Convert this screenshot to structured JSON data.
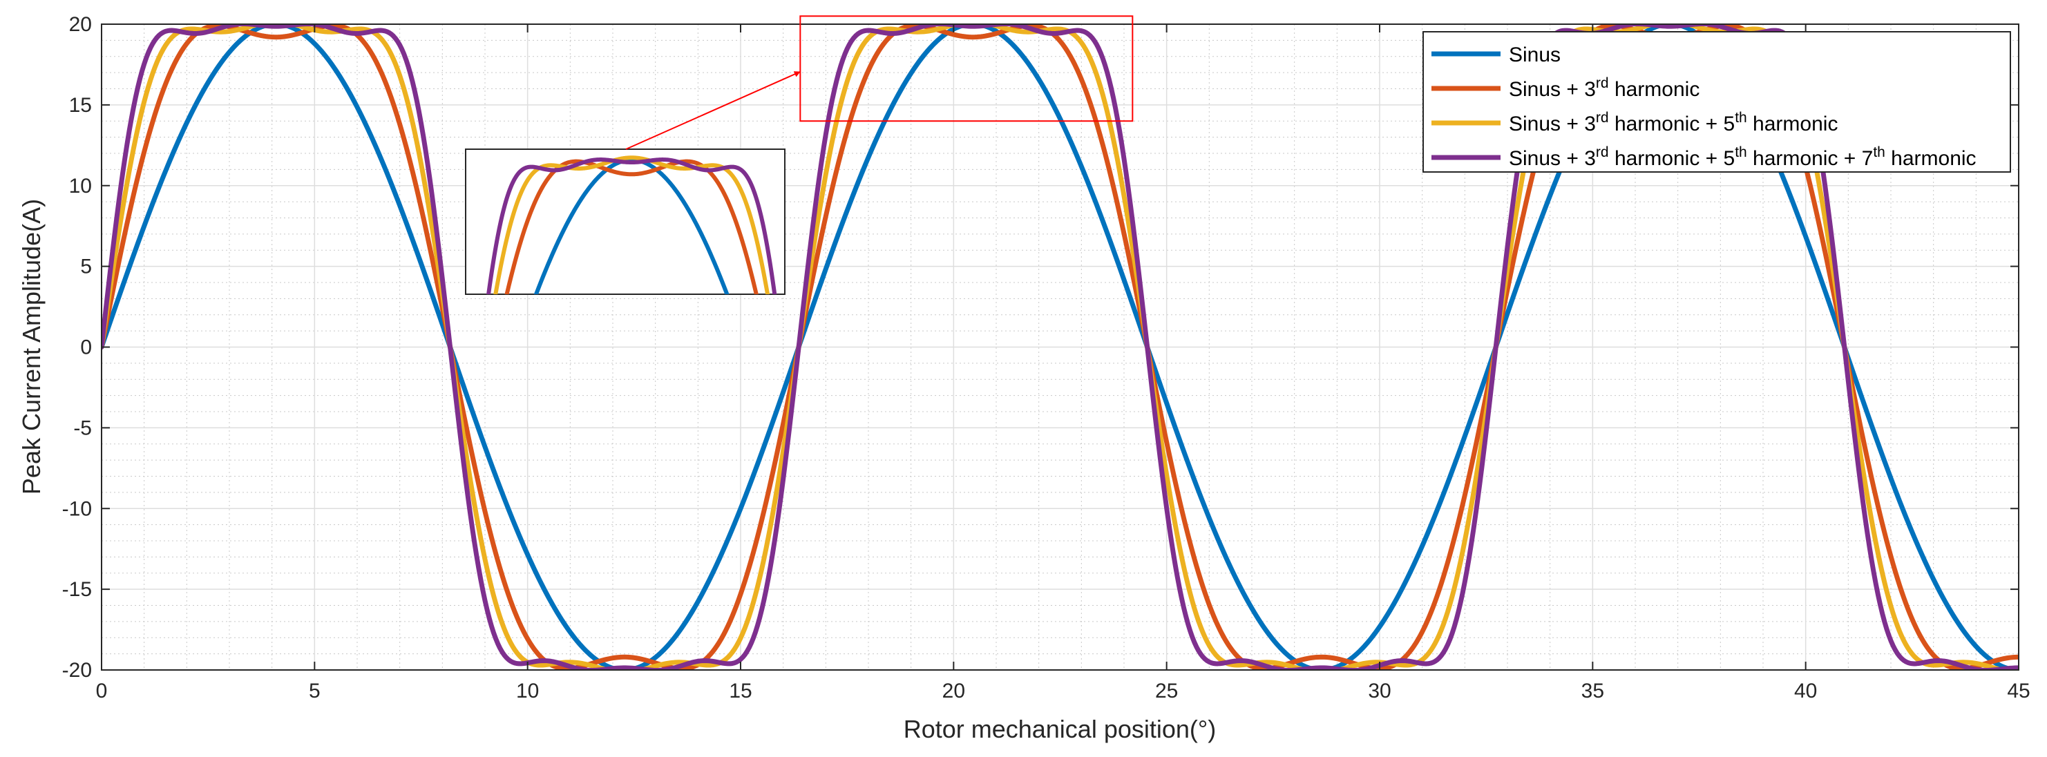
{
  "chart_data": {
    "type": "line",
    "title": "",
    "xlabel": "Rotor mechanical position(°)",
    "ylabel": "Peak Current Amplitude(A)",
    "xlim": [
      0,
      45
    ],
    "ylim": [
      -20,
      20
    ],
    "xticks": [
      0,
      5,
      10,
      15,
      20,
      25,
      30,
      35,
      40,
      45
    ],
    "yticks": [
      -20,
      -15,
      -10,
      -5,
      0,
      5,
      10,
      15,
      20
    ],
    "x_tick_labels": [
      "0",
      "5",
      "10",
      "15",
      "20",
      "25",
      "30",
      "35",
      "40",
      "45"
    ],
    "y_tick_labels": [
      "-20",
      "-15",
      "-10",
      "-5",
      "0",
      "5",
      "10",
      "15",
      "20"
    ],
    "grid": "major and minor",
    "period_deg": 16.364,
    "amplitude": 20,
    "sample_step_deg": 0.05,
    "series": [
      {
        "name": "Sinus",
        "color": "#0072bd",
        "harmonics": [
          [
            1,
            1
          ]
        ],
        "legend_parts": [
          [
            "Sinus",
            false
          ]
        ]
      },
      {
        "name": "Sinus + 3rd harmonic",
        "color": "#d95319",
        "harmonics": [
          [
            1,
            1.15
          ],
          [
            3,
            0.19
          ]
        ],
        "legend_parts": [
          [
            "Sinus + 3",
            false
          ],
          [
            "rd",
            true
          ],
          [
            " harmonic",
            false
          ]
        ]
      },
      {
        "name": "Sinus + 3rd harmonic + 5th harmonic",
        "color": "#edb120",
        "harmonics": [
          [
            1,
            1.1995
          ],
          [
            3,
            0.2653
          ],
          [
            5,
            0.0722
          ]
        ],
        "legend_parts": [
          [
            "Sinus + 3",
            false
          ],
          [
            "rd",
            true
          ],
          [
            " harmonic + 5",
            false
          ],
          [
            "th",
            true
          ],
          [
            " harmonic",
            false
          ]
        ]
      },
      {
        "name": "Sinus + 3rd harmonic + 5th harmonic + 7th harmonic",
        "color": "#7e2f8e",
        "harmonics": [
          [
            1,
            1.2226
          ],
          [
            3,
            0.3137
          ],
          [
            5,
            0.1226
          ],
          [
            7,
            0.0382
          ]
        ],
        "legend_parts": [
          [
            "Sinus + 3",
            false
          ],
          [
            "rd",
            true
          ],
          [
            " harmonic + 5",
            false
          ],
          [
            "th",
            true
          ],
          [
            " harmonic + 7",
            false
          ],
          [
            "th",
            true
          ],
          [
            " harmonic",
            false
          ]
        ]
      }
    ],
    "annotations": {
      "legend_location": "top-right",
      "zoom_region": {
        "x": [
          16.4,
          24.2
        ],
        "y": [
          14,
          20.5
        ],
        "color": "#ff0000"
      },
      "zoom_inset": {
        "location": "upper-left-middle",
        "y_view": [
          12.5,
          20.6
        ]
      }
    }
  }
}
